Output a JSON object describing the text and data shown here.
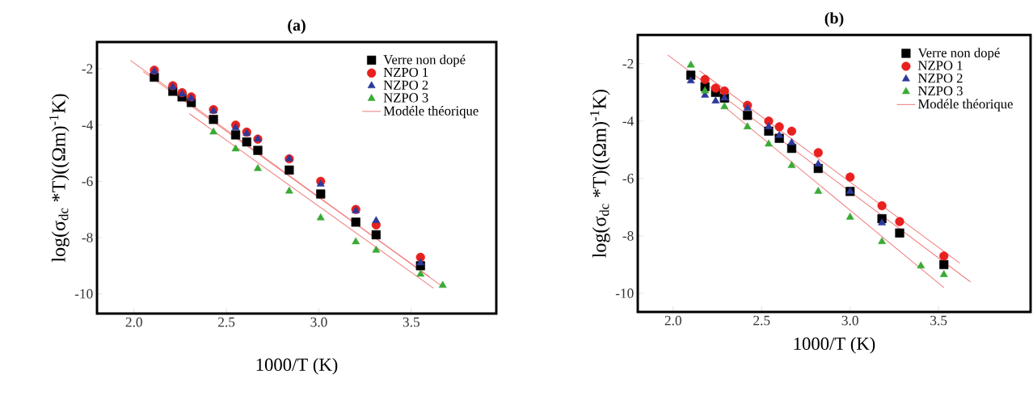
{
  "chart_data": [
    {
      "type": "scatter",
      "title": "(a)",
      "xlabel": "1000/T (K)",
      "ylabel": "log(σ$_{dc}$ *T)((Ωm)$^{-1}$K)",
      "xlim": [
        1.8,
        3.96
      ],
      "ylim": [
        -10.7,
        -1.05
      ],
      "xticks": [
        {
          "value": 2.0,
          "label": "2.0"
        },
        {
          "value": 2.5,
          "label": "2.5"
        },
        {
          "value": 3.0,
          "label": "3.0"
        },
        {
          "value": 3.5,
          "label": "3.5"
        }
      ],
      "yticks": [
        -2,
        -4,
        -6,
        -8,
        -10
      ],
      "legend": "top right",
      "series": [
        {
          "name": "Verre non dopé",
          "color": "#000000",
          "marker": "square",
          "x": [
            2.11,
            2.21,
            2.26,
            2.31,
            2.43,
            2.55,
            2.61,
            2.67,
            2.84,
            3.01,
            3.2,
            3.31,
            3.55
          ],
          "values": [
            -2.3,
            -2.8,
            -3.0,
            -3.2,
            -3.8,
            -4.35,
            -4.6,
            -4.9,
            -5.6,
            -6.45,
            -7.45,
            -7.9,
            -9.0
          ]
        },
        {
          "name": "NZPO 1",
          "color": "#e8201e",
          "marker": "circle",
          "x": [
            2.11,
            2.21,
            2.26,
            2.31,
            2.43,
            2.55,
            2.61,
            2.67,
            2.84,
            3.01,
            3.2,
            3.31,
            3.55
          ],
          "values": [
            -2.05,
            -2.6,
            -2.85,
            -3.0,
            -3.45,
            -4.0,
            -4.25,
            -4.5,
            -5.2,
            -6.0,
            -7.0,
            -7.55,
            -8.7
          ]
        },
        {
          "name": "NZPO 2",
          "color": "#2b3a9a",
          "marker": "triangle",
          "x": [
            2.11,
            2.21,
            2.26,
            2.31,
            2.43,
            2.55,
            2.61,
            2.67,
            2.84,
            3.01,
            3.2,
            3.31,
            3.55
          ],
          "values": [
            -2.1,
            -2.65,
            -2.9,
            -3.05,
            -3.5,
            -4.1,
            -4.3,
            -4.5,
            -5.2,
            -6.1,
            -7.05,
            -7.4,
            -8.9
          ]
        },
        {
          "name": "NZPO 3",
          "color": "#3aaa35",
          "marker": "triangle",
          "x": [
            2.43,
            2.55,
            2.67,
            2.84,
            3.01,
            3.2,
            3.31,
            3.55,
            3.67
          ],
          "values": [
            -4.25,
            -4.85,
            -5.55,
            -6.35,
            -7.3,
            -8.15,
            -8.45,
            -9.3,
            -9.7
          ]
        },
        {
          "name": "Modéle théorique",
          "type": "line",
          "color": "#f08080",
          "marker": "none",
          "x": [
            1.98,
            3.66
          ],
          "values": [
            -1.7,
            -9.7
          ]
        },
        {
          "type": "line",
          "color": "#f08080",
          "marker": "none",
          "x": [
            2.05,
            3.6
          ],
          "values": [
            -2.1,
            -9.4
          ]
        },
        {
          "type": "line",
          "color": "#f08080",
          "marker": "none",
          "x": [
            2.3,
            3.62
          ],
          "values": [
            -3.6,
            -9.8
          ]
        }
      ]
    },
    {
      "type": "scatter",
      "title": "(b)",
      "xlabel": "1000/T (K)",
      "ylabel": "log(σ$_{dc}$ *T)((Ωm)$^{-1}$K)",
      "xlim": [
        1.8,
        4.02
      ],
      "ylim": [
        -10.65,
        -1.0
      ],
      "xticks": [
        {
          "value": 2.0,
          "label": "2.0"
        },
        {
          "value": 2.5,
          "label": "2.5"
        },
        {
          "value": 3.0,
          "label": "3.0"
        },
        {
          "value": 3.5,
          "label": "3.5"
        }
      ],
      "yticks": [
        -2,
        -4,
        -6,
        -8,
        -10
      ],
      "legend": "top right",
      "series": [
        {
          "name": "Verre non dopé",
          "color": "#000000",
          "marker": "square",
          "x": [
            2.1,
            2.18,
            2.24,
            2.29,
            2.42,
            2.54,
            2.6,
            2.67,
            2.82,
            3.0,
            3.18,
            3.28,
            3.53
          ],
          "values": [
            -2.4,
            -2.8,
            -3.0,
            -3.2,
            -3.8,
            -4.35,
            -4.6,
            -4.95,
            -5.65,
            -6.45,
            -7.4,
            -7.9,
            -9.0
          ]
        },
        {
          "name": "NZPO 1",
          "color": "#e8201e",
          "marker": "circle",
          "x": [
            2.18,
            2.24,
            2.29,
            2.42,
            2.54,
            2.6,
            2.67,
            2.82,
            3.0,
            3.18,
            3.28,
            3.53
          ],
          "values": [
            -2.55,
            -2.85,
            -2.95,
            -3.45,
            -4.0,
            -4.2,
            -4.35,
            -5.1,
            -5.95,
            -6.95,
            -7.5,
            -8.7
          ]
        },
        {
          "name": "NZPO 2",
          "color": "#2b3a9a",
          "marker": "triangle",
          "x": [
            2.1,
            2.18,
            2.24,
            2.29,
            2.42,
            2.54,
            2.6,
            2.67,
            2.82,
            3.0,
            3.18
          ],
          "values": [
            -2.6,
            -3.1,
            -3.3,
            -3.2,
            -3.55,
            -4.2,
            -4.5,
            -4.75,
            -5.5,
            -6.45,
            -7.55
          ]
        },
        {
          "name": "NZPO 3",
          "color": "#3aaa35",
          "marker": "triangle",
          "x": [
            2.1,
            2.18,
            2.29,
            2.42,
            2.54,
            2.67,
            2.82,
            3.0,
            3.18,
            3.4,
            3.53
          ],
          "values": [
            -2.05,
            -2.95,
            -3.5,
            -4.2,
            -4.8,
            -5.55,
            -6.45,
            -7.35,
            -8.2,
            -9.05,
            -9.35
          ]
        },
        {
          "name": "Modéle théorique",
          "type": "line",
          "color": "#f08080",
          "marker": "none",
          "x": [
            1.97,
            3.68
          ],
          "values": [
            -1.7,
            -9.6
          ]
        },
        {
          "type": "line",
          "color": "#f08080",
          "marker": "none",
          "x": [
            2.15,
            3.62
          ],
          "values": [
            -2.25,
            -8.95
          ]
        },
        {
          "type": "line",
          "color": "#f08080",
          "marker": "none",
          "x": [
            2.28,
            3.53
          ],
          "values": [
            -3.45,
            -9.8
          ]
        }
      ]
    }
  ]
}
